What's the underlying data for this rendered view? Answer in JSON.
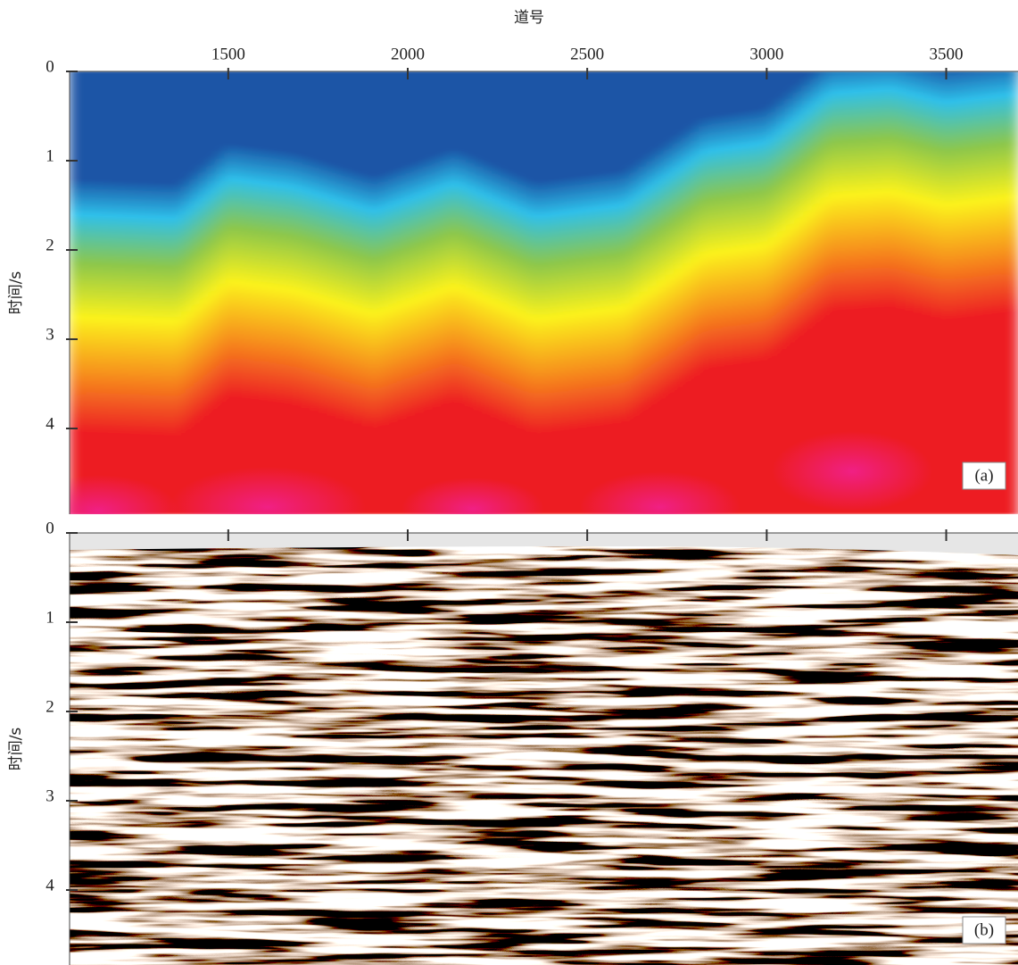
{
  "chart_data": [
    {
      "type": "image",
      "xlabel": "道号",
      "ylabel": "时间/s",
      "label": "(a)",
      "xlim": [
        1058,
        3700
      ],
      "xticks": [
        1500,
        2000,
        2500,
        3000,
        3500
      ],
      "ylim": [
        0,
        4.96
      ],
      "yticks": [
        0,
        1,
        2,
        3,
        4
      ]
    },
    {
      "type": "image",
      "ylabel": "时间/s",
      "label": "(b)",
      "xlim": [
        1058,
        3700
      ],
      "ylim": [
        0,
        4.84
      ],
      "yticks": [
        0,
        1,
        2,
        3,
        4
      ]
    }
  ]
}
